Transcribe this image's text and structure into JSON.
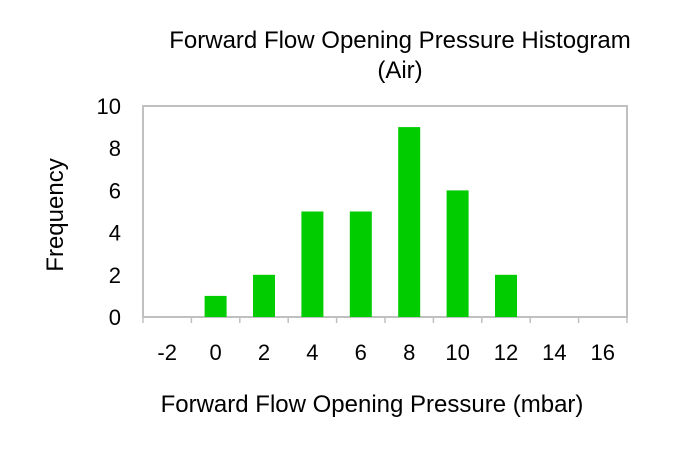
{
  "chart_data": {
    "type": "bar",
    "title_line1": "Forward Flow Opening Pressure Histogram",
    "title_line2": "(Air)",
    "xlabel": "Forward Flow Opening Pressure (mbar)",
    "ylabel": "Frequency",
    "categories": [
      "-2",
      "0",
      "2",
      "4",
      "6",
      "8",
      "10",
      "12",
      "14",
      "16"
    ],
    "values": [
      0,
      1,
      2,
      5,
      5,
      9,
      6,
      2,
      0,
      0
    ],
    "yticks": [
      "0",
      "2",
      "4",
      "6",
      "8",
      "10"
    ],
    "ylim": [
      0,
      10
    ],
    "bar_color": "#00cc00",
    "legend": "none",
    "grid": false
  }
}
